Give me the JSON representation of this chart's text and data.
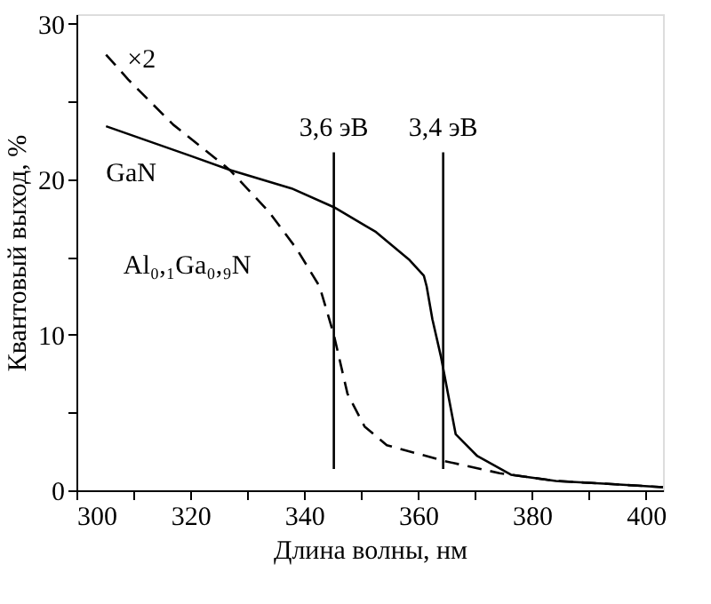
{
  "chart_data": {
    "type": "line",
    "xlabel": "Длина волны, нм",
    "ylabel": "Квантовый выход, %",
    "xlim": [
      300,
      403
    ],
    "ylim": [
      0,
      30.6
    ],
    "xticks": [
      300,
      {
        "value": 310,
        "label": null
      },
      320,
      {
        "value": 330,
        "label": null
      },
      340,
      {
        "value": 350,
        "label": null
      },
      360,
      {
        "value": 370,
        "label": null
      },
      380,
      {
        "value": 390,
        "label": null
      },
      400
    ],
    "yticks": [
      0,
      {
        "value": 5,
        "label": null
      },
      10,
      {
        "value": 15,
        "label": null
      },
      20,
      {
        "value": 25,
        "label": null
      },
      30
    ],
    "grid": false,
    "marker": "none",
    "series": [
      {
        "name": "GaN",
        "color": "#000000",
        "line_style": "solid",
        "x": [
          305.2,
          320,
          326.9,
          337.8,
          345.2,
          352.6,
          358.5,
          361,
          361.5,
          362.5,
          364,
          366.6,
          370.4,
          376.3,
          384.2,
          394,
          403
        ],
        "values": [
          23.4,
          21.5,
          20.6,
          19.4,
          18.2,
          16.6,
          14.8,
          13.8,
          13.1,
          11.0,
          8.6,
          3.6,
          2.2,
          1.0,
          0.6,
          0.4,
          0.2
        ]
      },
      {
        "name": "Al₀,₁Ga₀,₉N",
        "color": "#000000",
        "line_style": "dashed",
        "x": [
          305.2,
          309.1,
          317,
          326.9,
          333.8,
          338.7,
          342.7,
          345.2,
          347.6,
          350.6,
          354.5,
          364.4,
          374.3,
          384.2,
          394,
          403
        ],
        "values": [
          28.0,
          26.4,
          23.5,
          20.6,
          17.9,
          15.5,
          13.1,
          10.0,
          6.2,
          4.1,
          2.9,
          1.9,
          1.1,
          0.6,
          0.4,
          0.2
        ]
      }
    ],
    "ref_lines": [
      {
        "axis": "x",
        "value": 345.2,
        "label": "3,6 эВ"
      },
      {
        "axis": "x",
        "value": 364.4,
        "label": "3,4 эВ"
      }
    ],
    "annotations": [
      "×2"
    ]
  }
}
